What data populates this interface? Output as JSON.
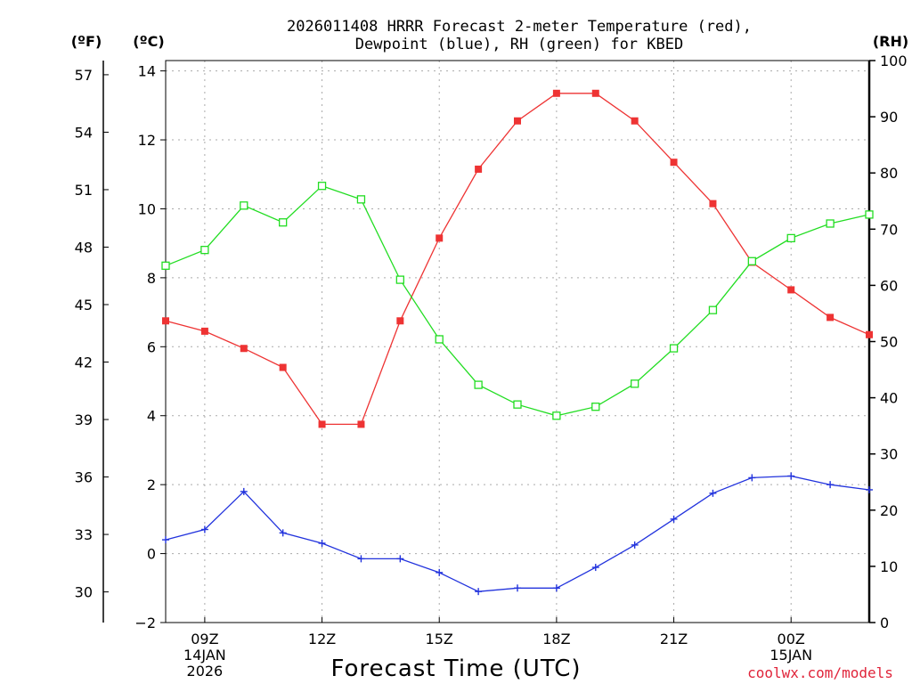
{
  "chart_data": {
    "type": "line",
    "title_line1": "2026011408 HRRR Forecast 2-meter Temperature (red),",
    "title_line2": "Dewpoint (blue), RH (green) for KBED",
    "xlabel": "Forecast Time (UTC)",
    "credit": "coolwx.com/models",
    "units": {
      "fahrenheit": "(ºF)",
      "celsius": "(ºC)",
      "rh": "(RH)"
    },
    "x_hours": [
      8,
      9,
      10,
      11,
      12,
      13,
      14,
      15,
      16,
      17,
      18,
      19,
      20,
      21,
      22,
      23,
      24,
      25,
      26
    ],
    "xlim": [
      8,
      26
    ],
    "x_ticks": [
      {
        "hour": 9,
        "lines": [
          "09Z",
          "14JAN",
          "2026"
        ]
      },
      {
        "hour": 12,
        "lines": [
          "12Z"
        ]
      },
      {
        "hour": 15,
        "lines": [
          "15Z"
        ]
      },
      {
        "hour": 18,
        "lines": [
          "18Z"
        ]
      },
      {
        "hour": 21,
        "lines": [
          "21Z"
        ]
      },
      {
        "hour": 24,
        "lines": [
          "00Z",
          "15JAN"
        ]
      }
    ],
    "y_celsius": {
      "ylim": [
        -2,
        14.3
      ],
      "ticks": [
        -2,
        0,
        2,
        4,
        6,
        8,
        10,
        12,
        14
      ]
    },
    "y_fahrenheit": {
      "ticks": [
        30,
        33,
        36,
        39,
        42,
        45,
        48,
        51,
        54,
        57
      ]
    },
    "y_rh": {
      "ylim": [
        0,
        100
      ],
      "ticks": [
        0,
        10,
        20,
        30,
        40,
        50,
        60,
        70,
        80,
        90,
        100
      ]
    },
    "series": [
      {
        "name": "Temperature",
        "axis": "celsius",
        "color": "#ee3333",
        "marker": "filled-square",
        "values": [
          6.75,
          6.45,
          5.95,
          5.4,
          3.75,
          3.75,
          6.75,
          9.15,
          11.15,
          12.55,
          13.35,
          13.35,
          12.55,
          11.35,
          10.15,
          8.45,
          7.65,
          6.85,
          6.35
        ]
      },
      {
        "name": "Dewpoint",
        "axis": "celsius",
        "color": "#2233dd",
        "marker": "plus",
        "values": [
          0.4,
          0.7,
          1.8,
          0.6,
          0.3,
          -0.15,
          -0.15,
          -0.55,
          -1.1,
          -1.0,
          -1.0,
          -0.4,
          0.25,
          1.0,
          1.75,
          2.2,
          2.25,
          2.0,
          1.85
        ]
      },
      {
        "name": "RH",
        "axis": "rh",
        "color": "#22dd22",
        "marker": "open-square",
        "values": [
          63.5,
          66.3,
          74.2,
          71.2,
          77.7,
          75.3,
          61.0,
          50.4,
          42.3,
          38.8,
          36.8,
          38.4,
          42.5,
          48.8,
          55.6,
          64.3,
          68.4,
          71.0,
          72.6
        ]
      }
    ]
  }
}
